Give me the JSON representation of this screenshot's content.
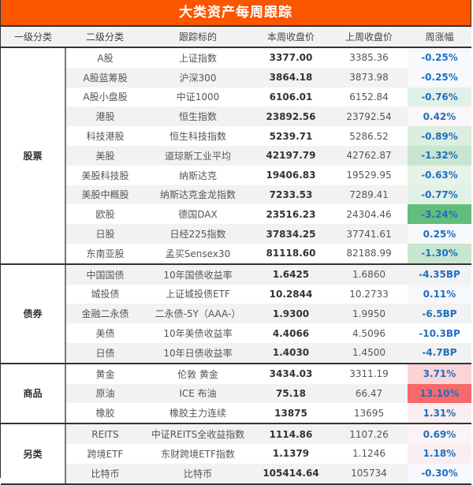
{
  "title": "大类资产每周跟踪",
  "headers": [
    "一级分类",
    "二级分类",
    "跟踪标的",
    "本周收盘价",
    "上周收盘价",
    "周涨幅"
  ],
  "groups": [
    {
      "category": "股票",
      "rows": [
        {
          "sub": "A股",
          "target": "上证指数",
          "cur": "3377.00",
          "prev": "3385.36",
          "chg": "-0.25%",
          "bg": "#f7f9fd"
        },
        {
          "sub": "A股蓝筹股",
          "target": "沪深300",
          "cur": "3864.18",
          "prev": "3873.98",
          "chg": "-0.25%",
          "bg": "#f7f9fd"
        },
        {
          "sub": "A股小盘股",
          "target": "中证1000",
          "cur": "6106.01",
          "prev": "6152.84",
          "chg": "-0.76%",
          "bg": "#e0f1e6"
        },
        {
          "sub": "港股",
          "target": "恒生指数",
          "cur": "23892.56",
          "prev": "23792.54",
          "chg": "0.42%",
          "bg": "#fbf6f8"
        },
        {
          "sub": "科技港股",
          "target": "恒生科技指数",
          "cur": "5239.71",
          "prev": "5286.52",
          "chg": "-0.89%",
          "bg": "#dceedf"
        },
        {
          "sub": "美股",
          "target": "道琼斯工业平均",
          "cur": "42197.79",
          "prev": "42762.87",
          "chg": "-1.32%",
          "bg": "#c8e6cf"
        },
        {
          "sub": "美股科技股",
          "target": "纳斯达克",
          "cur": "19406.83",
          "prev": "19529.95",
          "chg": "-0.63%",
          "bg": "#e5f3e9"
        },
        {
          "sub": "美股中概股",
          "target": "纳斯达克金龙指数",
          "cur": "7233.53",
          "prev": "7289.41",
          "chg": "-0.77%",
          "bg": "#e0f1e5"
        },
        {
          "sub": "欧股",
          "target": "德国DAX",
          "cur": "23516.23",
          "prev": "24304.46",
          "chg": "-3.24%",
          "bg": "#63be7b"
        },
        {
          "sub": "日股",
          "target": "日经225指数",
          "cur": "37834.25",
          "prev": "37741.61",
          "chg": "0.25%",
          "bg": "#f8f8fc"
        },
        {
          "sub": "东南亚股",
          "target": "孟买Sensex30",
          "cur": "81118.60",
          "prev": "82188.99",
          "chg": "-1.30%",
          "bg": "#c9e7d0"
        }
      ]
    },
    {
      "category": "债券",
      "rows": [
        {
          "sub": "中国国债",
          "target": "10年国债收益率",
          "cur": "1.6425",
          "prev": "1.6860",
          "chg": "-4.35BP",
          "bg": "#f2f2f2"
        },
        {
          "sub": "城投债",
          "target": "上证城投债ETF",
          "cur": "10.2844",
          "prev": "10.2733",
          "chg": "0.11%",
          "bg": "#f8f8fc"
        },
        {
          "sub": "金融二永债",
          "target": "二永债-5Y（AAA-）",
          "cur": "1.9300",
          "prev": "1.9950",
          "chg": "-6.5BP",
          "bg": "#f2f2f2"
        },
        {
          "sub": "美债",
          "target": "10年美债收益率",
          "cur": "4.4066",
          "prev": "4.5096",
          "chg": "-10.3BP",
          "bg": "#ffffff"
        },
        {
          "sub": "日债",
          "target": "10年日债收益率",
          "cur": "1.4030",
          "prev": "1.4500",
          "chg": "-4.7BP",
          "bg": "#f2f2f2"
        }
      ]
    },
    {
      "category": "商品",
      "rows": [
        {
          "sub": "黄金",
          "target": "伦敦 黄金",
          "cur": "3434.03",
          "prev": "3311.19",
          "chg": "3.71%",
          "bg": "#fcd4d6"
        },
        {
          "sub": "原油",
          "target": "ICE 布油",
          "cur": "75.18",
          "prev": "66.47",
          "chg": "13.10%",
          "bg": "#f8696b"
        },
        {
          "sub": "橡胶",
          "target": "橡胶主力连续",
          "cur": "13875",
          "prev": "13695",
          "chg": "1.31%",
          "bg": "#fbeef0"
        }
      ]
    },
    {
      "category": "另类",
      "rows": [
        {
          "sub": "REITS",
          "target": "中证REITS全收益指数",
          "cur": "1114.86",
          "prev": "1107.26",
          "chg": "0.69%",
          "bg": "#fbf3f5"
        },
        {
          "sub": "跨境ETF",
          "target": "东财跨境ETF指数",
          "cur": "1.1379",
          "prev": "1.1246",
          "chg": "1.18%",
          "bg": "#fbeef0"
        },
        {
          "sub": "比特币",
          "target": "比特币",
          "cur": "105414.64",
          "prev": "105734",
          "chg": "-0.30%",
          "bg": "#f6f8fd"
        }
      ]
    }
  ],
  "colors": {
    "title_bg": "#fb5500",
    "header_bg": "#f2f2f2",
    "change_text": "#1f6fbf",
    "strong_green": "#63be7b",
    "strong_red": "#f8696b"
  }
}
